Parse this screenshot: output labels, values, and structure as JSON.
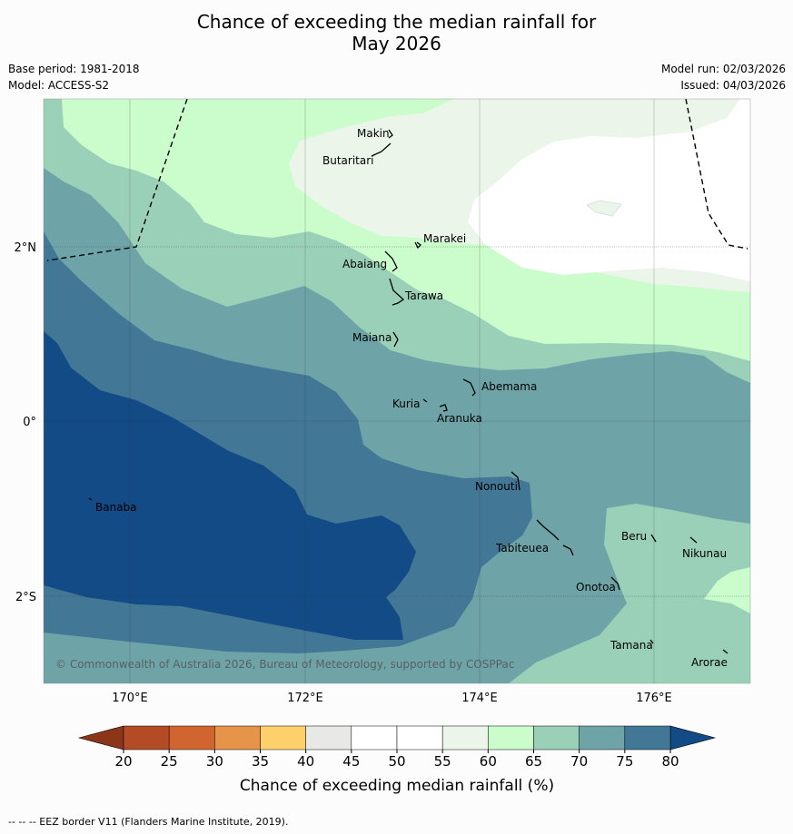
{
  "title": {
    "line1": "Chance of exceeding the median rainfall for",
    "line2": "May 2026"
  },
  "meta": {
    "base_period": "Base period: 1981-2018",
    "model": "Model: ACCESS-S2",
    "model_run": "Model run: 02/03/2026",
    "issued": "Issued: 04/03/2026"
  },
  "axes": {
    "lat_labels": [
      "2°N",
      "0°",
      "2°S"
    ],
    "lon_labels": [
      "170°E",
      "172°E",
      "174°E",
      "176°E"
    ]
  },
  "places": [
    "Makin",
    "Butaritari",
    "Marakei",
    "Abaiang",
    "Tarawa",
    "Maiana",
    "Abemama",
    "Kuria",
    "Aranuka",
    "Nonouti",
    "Banaba",
    "Tabiteuea",
    "Beru",
    "Nikunau",
    "Onotoa",
    "Tamana",
    "Arorae"
  ],
  "copyright": "© Commonwealth of Australia 2026, Bureau of Meteorology, supported by COSPPac",
  "legend": {
    "ticks": [
      "20",
      "25",
      "30",
      "35",
      "40",
      "45",
      "50",
      "55",
      "60",
      "65",
      "70",
      "75",
      "80"
    ],
    "colors": [
      "#b34b25",
      "#d16530",
      "#e59449",
      "#fdd06b",
      "#e8e8e6",
      "#ffffff",
      "#ffffff",
      "#ebf5ea",
      "#cbfccb",
      "#9bd0b8",
      "#6ea4a8",
      "#427796"
    ],
    "under_color": "#8c3519",
    "over_color": "#124b86",
    "label": "Chance of exceeding median rainfall (%)"
  },
  "footer": "-- -- -- EEZ border V11 (Flanders Marine Institute, 2019)."
}
